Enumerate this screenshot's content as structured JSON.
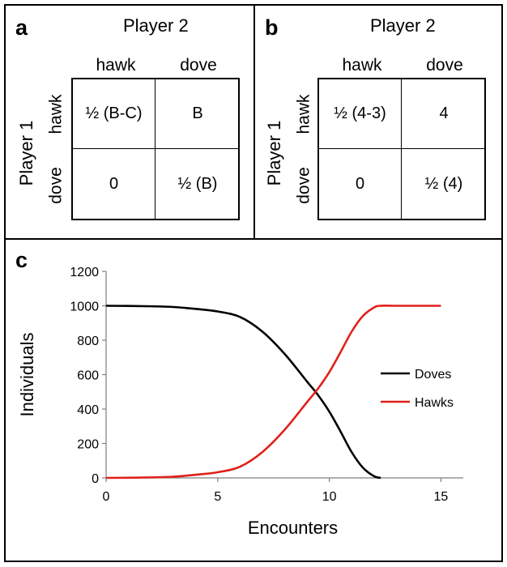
{
  "panel_a": {
    "letter": "a",
    "player2": "Player 2",
    "player1": "Player 1",
    "col_labels": [
      "hawk",
      "dove"
    ],
    "row_labels": [
      "hawk",
      "dove"
    ],
    "cells": [
      [
        "½ (B-C)",
        "B"
      ],
      [
        "0",
        "½ (B)"
      ]
    ]
  },
  "panel_b": {
    "letter": "b",
    "player2": "Player 2",
    "player1": "Player 1",
    "col_labels": [
      "hawk",
      "dove"
    ],
    "row_labels": [
      "hawk",
      "dove"
    ],
    "cells": [
      [
        "½ (4-3)",
        "4"
      ],
      [
        "0",
        "½ (4)"
      ]
    ]
  },
  "panel_c": {
    "letter": "c"
  },
  "chart_data": {
    "type": "line",
    "title": "",
    "xlabel": "Encounters",
    "ylabel": "Individuals",
    "xlim": [
      0,
      16
    ],
    "ylim": [
      0,
      1200
    ],
    "xticks": [
      0,
      5,
      10,
      15
    ],
    "yticks": [
      0,
      200,
      400,
      600,
      800,
      1000,
      1200
    ],
    "legend_position": "right",
    "series": [
      {
        "name": "Doves",
        "color": "#000000",
        "x": [
          0,
          1,
          2,
          3,
          4,
          5,
          6,
          7,
          8,
          9,
          9.5,
          10,
          10.5,
          11,
          11.5,
          12,
          12.3
        ],
        "y": [
          1000,
          999,
          997,
          993,
          982,
          967,
          935,
          850,
          720,
          560,
          480,
          385,
          270,
          150,
          60,
          10,
          0
        ]
      },
      {
        "name": "Hawks",
        "color": "#e0201b",
        "x": [
          0,
          1,
          2,
          3,
          4,
          5,
          6,
          7,
          8,
          9,
          9.5,
          10,
          10.5,
          11,
          11.5,
          12,
          12.3,
          13,
          14,
          15
        ],
        "y": [
          0,
          1,
          3,
          7,
          18,
          33,
          65,
          150,
          280,
          440,
          520,
          615,
          730,
          850,
          940,
          990,
          1000,
          1000,
          1000,
          1000
        ]
      }
    ]
  }
}
